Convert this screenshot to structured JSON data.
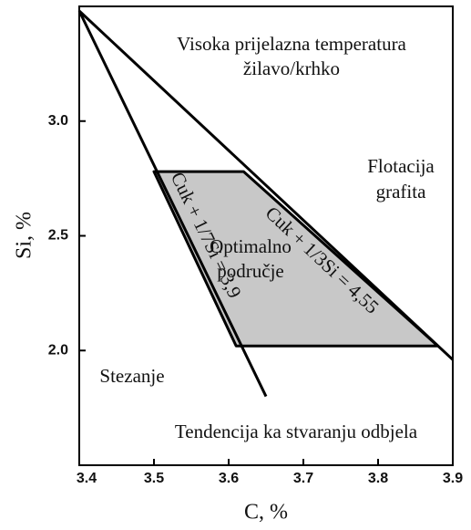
{
  "chart_data": {
    "type": "line",
    "xlabel": "C, %",
    "ylabel": "Si, %",
    "xlim": [
      3.4,
      3.9
    ],
    "ylim": [
      1.5,
      3.5
    ],
    "xticks": [
      3.4,
      3.5,
      3.6,
      3.7,
      3.8,
      3.9
    ],
    "yticks": [
      {
        "value": 3,
        "label": "3.0"
      },
      2.5,
      {
        "value": 2,
        "label": "2.0"
      }
    ],
    "series": [
      {
        "name": "Cuk + 1/3Si = 4,55",
        "color": "#000000",
        "x": [
          3.4,
          3.9
        ],
        "values": [
          3.48,
          1.96
        ]
      },
      {
        "name": "Cuk + 1/7Si = 3,9",
        "color": "#000000",
        "x": [
          3.4,
          3.65
        ],
        "values": [
          3.48,
          1.8
        ]
      }
    ],
    "region": {
      "color": "#c8c8c8",
      "x": [
        3.5,
        3.62,
        3.88,
        3.61
      ],
      "values": [
        2.78,
        2.78,
        2.02,
        2.02
      ]
    },
    "annotations": [
      "Visoka prijelazna temperatura",
      "žilavo/krhko",
      "Flotacija",
      "grafita",
      "Optimalno",
      "područje",
      "Stezanje",
      "Tendencija ka stvaranju odbjela"
    ]
  }
}
